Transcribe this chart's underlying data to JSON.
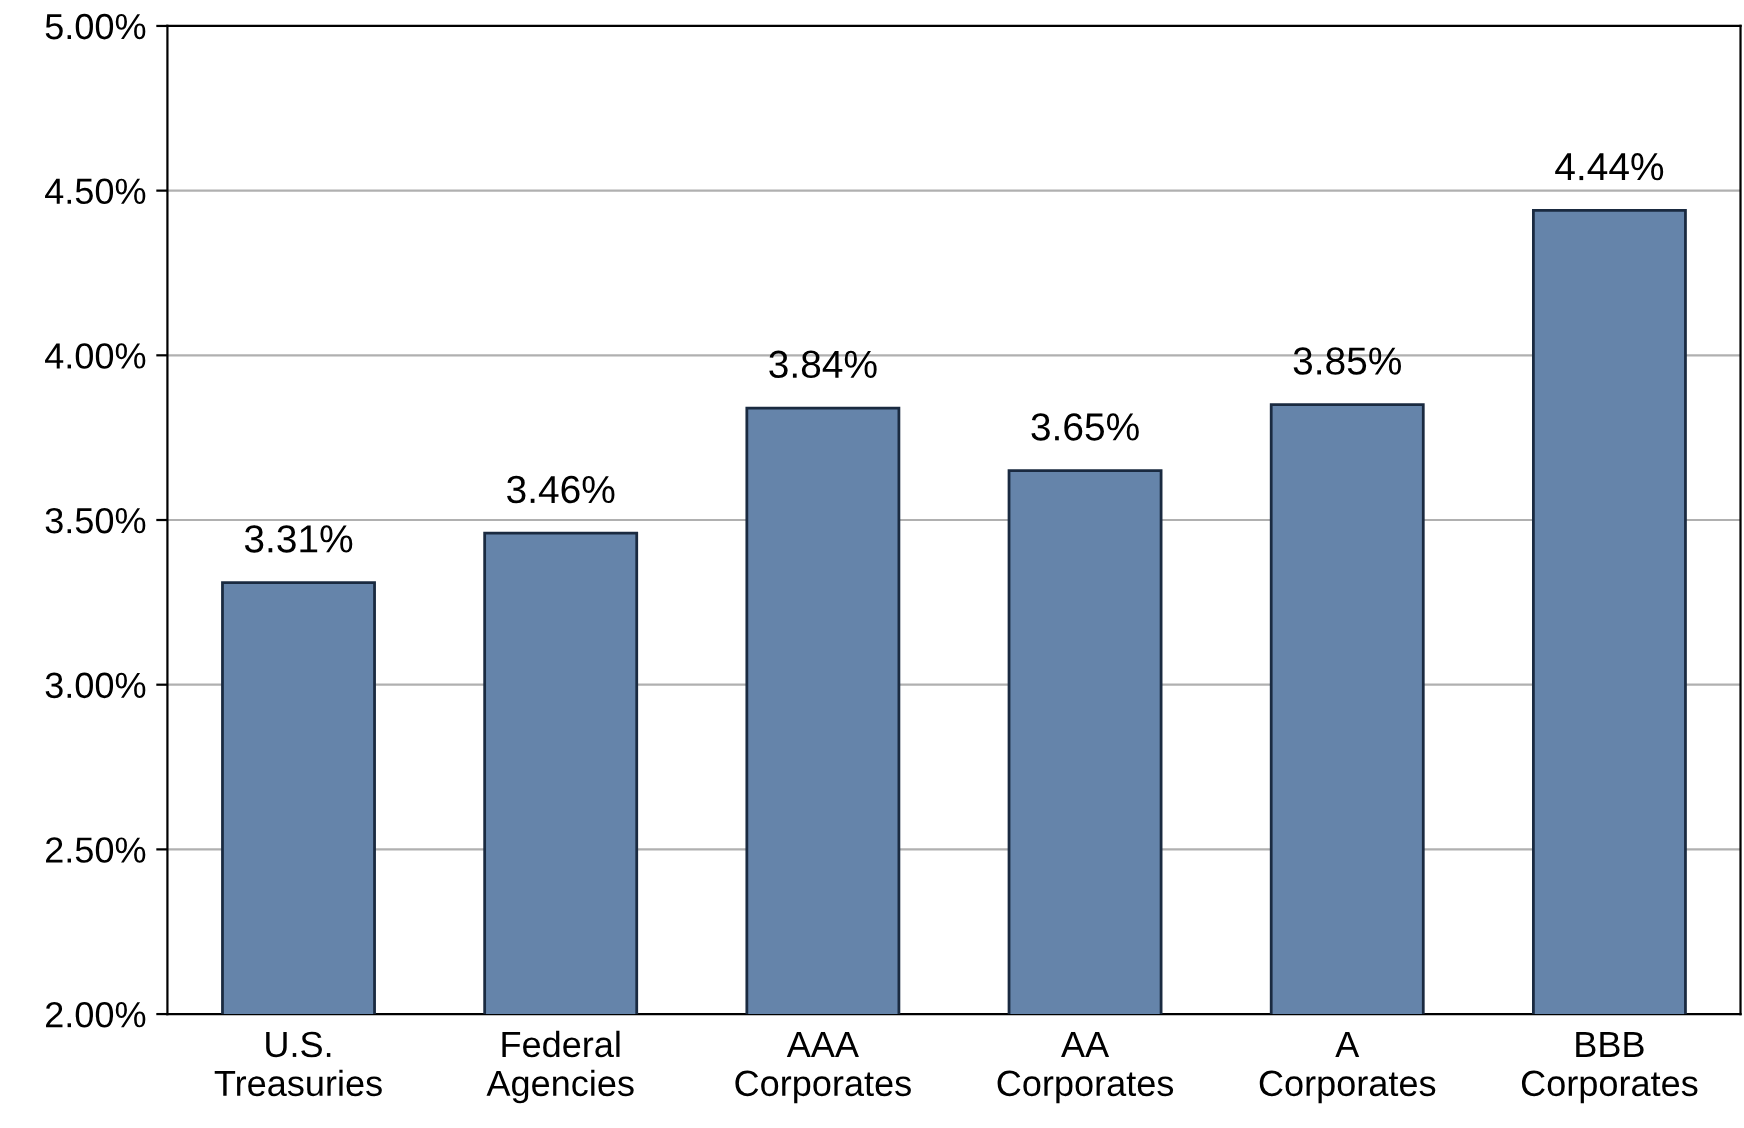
{
  "chart_data": {
    "type": "bar",
    "categories": [
      "U.S.\nTreasuries",
      "Federal\nAgencies",
      "AAA\nCorporates",
      "AA\nCorporates",
      "A\nCorporates",
      "BBB\nCorporates"
    ],
    "values": [
      3.31,
      3.46,
      3.84,
      3.65,
      3.85,
      4.44
    ],
    "value_labels": [
      "3.31%",
      "3.46%",
      "3.84%",
      "3.65%",
      "3.85%",
      "4.44%"
    ],
    "color": "#6584aa",
    "ylim": [
      2.0,
      5.0
    ],
    "yticks": [
      {
        "value": 2.0,
        "label": "2.00%"
      },
      {
        "value": 2.5,
        "label": "2.50%"
      },
      {
        "value": 3.0,
        "label": "3.00%"
      },
      {
        "value": 3.5,
        "label": "3.50%"
      },
      {
        "value": 4.0,
        "label": "4.00%"
      },
      {
        "value": 4.5,
        "label": "4.50%"
      },
      {
        "value": 5.0,
        "label": "5.00%"
      }
    ],
    "grid": "y"
  }
}
